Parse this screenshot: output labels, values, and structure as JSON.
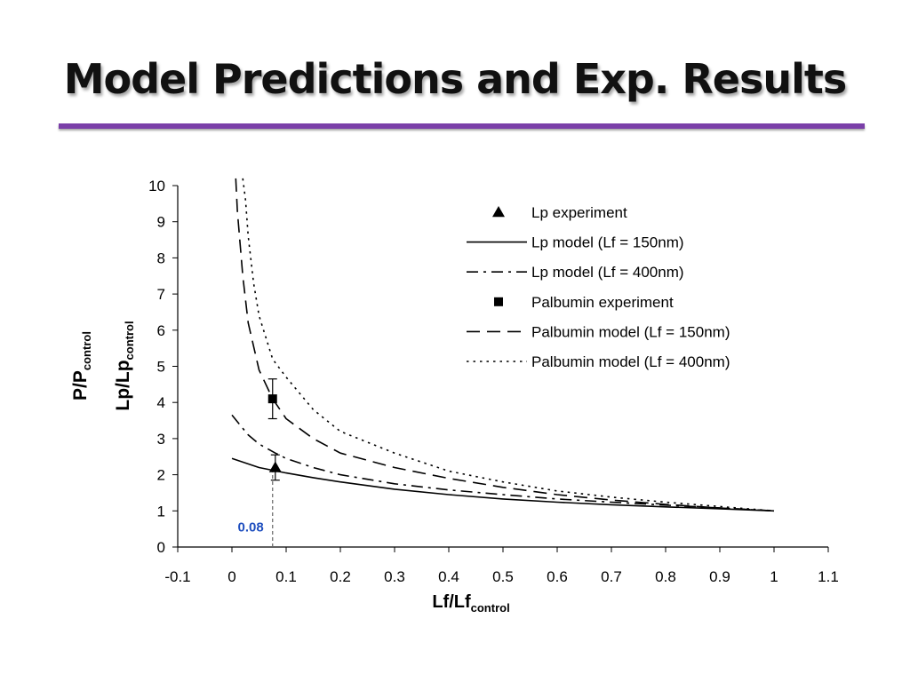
{
  "slide": {
    "title": "Model Predictions and Exp. Results",
    "accent_color": "#7a3fa8"
  },
  "chart_data": {
    "type": "line",
    "title": "",
    "xlabel": {
      "main": "Lf/Lf",
      "sub": "control"
    },
    "ylabel": [
      {
        "main": "P/P",
        "sub": "control"
      },
      {
        "main": "Lp/Lp",
        "sub": "control"
      }
    ],
    "xlim": [
      -0.1,
      1.1
    ],
    "ylim": [
      0,
      10
    ],
    "xticks": [
      "-0.1",
      "0",
      "0.1",
      "0.2",
      "0.3",
      "0.4",
      "0.5",
      "0.6",
      "0.7",
      "0.8",
      "0.9",
      "1",
      "1.1"
    ],
    "yticks": [
      "0",
      "1",
      "2",
      "3",
      "4",
      "5",
      "6",
      "7",
      "8",
      "9",
      "10"
    ],
    "grid": false,
    "legend_position": "top-right",
    "annotation": {
      "text": "0.08",
      "x": 0.075,
      "color": "#1f4fbf"
    },
    "series": [
      {
        "name": "Lp experiment",
        "kind": "marker",
        "marker": "triangle",
        "points": [
          {
            "x": 0.08,
            "y": 2.2,
            "err": 0.35
          }
        ]
      },
      {
        "name": "Lp model (Lf = 150nm)",
        "kind": "line",
        "dash": "solid",
        "points": [
          [
            0.0,
            2.45
          ],
          [
            0.05,
            2.2
          ],
          [
            0.1,
            2.05
          ],
          [
            0.15,
            1.92
          ],
          [
            0.2,
            1.8
          ],
          [
            0.3,
            1.6
          ],
          [
            0.4,
            1.45
          ],
          [
            0.5,
            1.33
          ],
          [
            0.6,
            1.24
          ],
          [
            0.7,
            1.17
          ],
          [
            0.8,
            1.11
          ],
          [
            0.9,
            1.06
          ],
          [
            1.0,
            1.0
          ]
        ]
      },
      {
        "name": "Lp model (Lf = 400nm)",
        "kind": "line",
        "dash": "dashdot",
        "points": [
          [
            0.0,
            3.65
          ],
          [
            0.03,
            3.1
          ],
          [
            0.05,
            2.85
          ],
          [
            0.08,
            2.6
          ],
          [
            0.1,
            2.45
          ],
          [
            0.15,
            2.2
          ],
          [
            0.2,
            2.0
          ],
          [
            0.3,
            1.75
          ],
          [
            0.4,
            1.58
          ],
          [
            0.5,
            1.45
          ],
          [
            0.6,
            1.33
          ],
          [
            0.7,
            1.24
          ],
          [
            0.8,
            1.16
          ],
          [
            0.9,
            1.08
          ],
          [
            1.0,
            1.0
          ]
        ]
      },
      {
        "name": "Palbumin experiment",
        "kind": "marker",
        "marker": "square",
        "points": [
          {
            "x": 0.075,
            "y": 4.1,
            "err": 0.55
          }
        ]
      },
      {
        "name": "Palbumin model (Lf = 150nm)",
        "kind": "line",
        "dash": "dash",
        "points": [
          [
            0.007,
            10.2
          ],
          [
            0.01,
            9.3
          ],
          [
            0.02,
            7.5
          ],
          [
            0.03,
            6.2
          ],
          [
            0.05,
            4.9
          ],
          [
            0.075,
            4.1
          ],
          [
            0.1,
            3.55
          ],
          [
            0.15,
            3.0
          ],
          [
            0.2,
            2.6
          ],
          [
            0.3,
            2.2
          ],
          [
            0.4,
            1.9
          ],
          [
            0.5,
            1.65
          ],
          [
            0.6,
            1.45
          ],
          [
            0.7,
            1.3
          ],
          [
            0.8,
            1.18
          ],
          [
            0.9,
            1.08
          ],
          [
            1.0,
            1.0
          ]
        ]
      },
      {
        "name": "Palbumin model (Lf = 400nm)",
        "kind": "line",
        "dash": "dot",
        "points": [
          [
            0.02,
            10.2
          ],
          [
            0.025,
            9.6
          ],
          [
            0.03,
            8.6
          ],
          [
            0.04,
            7.3
          ],
          [
            0.05,
            6.4
          ],
          [
            0.075,
            5.2
          ],
          [
            0.1,
            4.7
          ],
          [
            0.15,
            3.8
          ],
          [
            0.2,
            3.2
          ],
          [
            0.3,
            2.6
          ],
          [
            0.4,
            2.1
          ],
          [
            0.5,
            1.8
          ],
          [
            0.6,
            1.55
          ],
          [
            0.7,
            1.38
          ],
          [
            0.8,
            1.24
          ],
          [
            0.9,
            1.12
          ],
          [
            1.0,
            1.0
          ]
        ]
      }
    ]
  }
}
